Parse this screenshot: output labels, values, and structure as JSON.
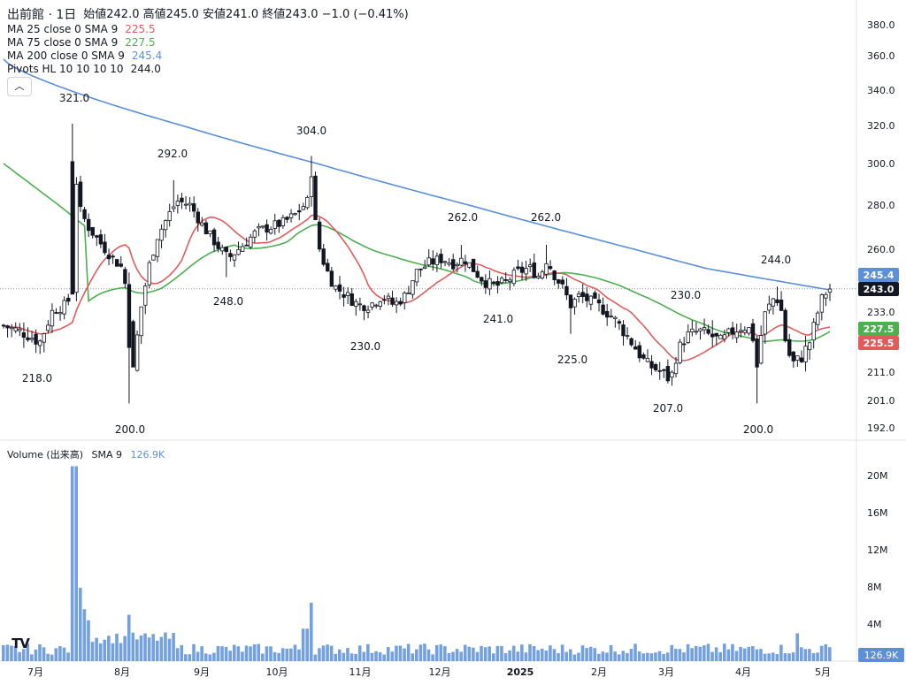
{
  "header": {
    "title": "出前館 · 1日",
    "ohlc": "始値242.0 高値245.0 安値241.0 終値243.0 −1.0 (−0.41%)"
  },
  "indicators": [
    {
      "label": "MA 25 close 0 SMA 9",
      "value": "225.5",
      "color": "#e05c5c"
    },
    {
      "label": "MA 75 close 0 SMA 9",
      "value": "227.5",
      "color": "#4caf50"
    },
    {
      "label": "MA 200 close 0 SMA 9",
      "value": "245.4",
      "color": "#5b8fd8"
    },
    {
      "label": "Pivots HL 10 10 10 10",
      "value": "244.0",
      "color": "#131722"
    }
  ],
  "volume_legend": {
    "label": "Volume (出来高)",
    "sma": "SMA 9",
    "value": "126.9K",
    "color": "#5b8fd8"
  },
  "chart_data": [
    {
      "type": "candlestick",
      "price_axis_ticks": [
        380.0,
        360.0,
        340.0,
        320.0,
        300.0,
        280.0,
        260.0,
        233.0,
        211.0,
        201.0,
        192.0
      ],
      "price_axis_special_ticks": [
        245.4,
        243.0,
        227.5,
        225.5
      ],
      "price_axis_tick_labels": [
        "380.0",
        "360.0",
        "340.0",
        "320.0",
        "300.0",
        "280.0",
        "260.0",
        "233.0",
        "211.0",
        "201.0",
        "192.0"
      ],
      "price_axis_badges": [
        {
          "label": "245.4",
          "value": 245.4,
          "color": "#5b8fd8"
        },
        {
          "label": "243.0",
          "value": 243.0,
          "color": "#131722"
        },
        {
          "label": "227.5",
          "value": 227.5,
          "color": "#4caf50"
        },
        {
          "label": "225.5",
          "value": 225.5,
          "color": "#e05c5c"
        }
      ],
      "x_labels": [
        "7月",
        "8月",
        "9月",
        "10月",
        "11月",
        "12月",
        "2025",
        "2月",
        "3月",
        "4月",
        "5月"
      ],
      "pivots": [
        {
          "label": "321.0",
          "value": 321.0,
          "kind": "high"
        },
        {
          "label": "218.0",
          "value": 218.0,
          "kind": "low"
        },
        {
          "label": "200.0",
          "value": 200.0,
          "kind": "low"
        },
        {
          "label": "292.0",
          "value": 292.0,
          "kind": "high"
        },
        {
          "label": "248.0",
          "value": 248.0,
          "kind": "low"
        },
        {
          "label": "304.0",
          "value": 304.0,
          "kind": "high"
        },
        {
          "label": "230.0",
          "value": 230.0,
          "kind": "low"
        },
        {
          "label": "262.0",
          "value": 262.0,
          "kind": "high"
        },
        {
          "label": "241.0",
          "value": 241.0,
          "kind": "low"
        },
        {
          "label": "262.0",
          "value": 262.0,
          "kind": "high"
        },
        {
          "label": "225.0",
          "value": 225.0,
          "kind": "low"
        },
        {
          "label": "207.0",
          "value": 207.0,
          "kind": "low"
        },
        {
          "label": "230.0",
          "value": 230.0,
          "kind": "high"
        },
        {
          "label": "244.0",
          "value": 244.0,
          "kind": "high"
        },
        {
          "label": "200.0",
          "value": 200.0,
          "kind": "low"
        }
      ],
      "last_close": 243.0,
      "colors": {
        "up": "#ffffff",
        "down": "#131722",
        "ma25": "#e05c5c",
        "ma75": "#4caf50",
        "ma200": "#5b8fd8"
      }
    },
    {
      "type": "bar",
      "title": "Volume (出来高)",
      "y_ticks_labels": [
        "20M",
        "16M",
        "12M",
        "8M",
        "4M"
      ],
      "y_ticks": [
        20,
        16,
        12,
        8,
        4
      ],
      "y_unit": "M",
      "last_value_label": "126.9K",
      "color": "#5b8fd8"
    }
  ]
}
